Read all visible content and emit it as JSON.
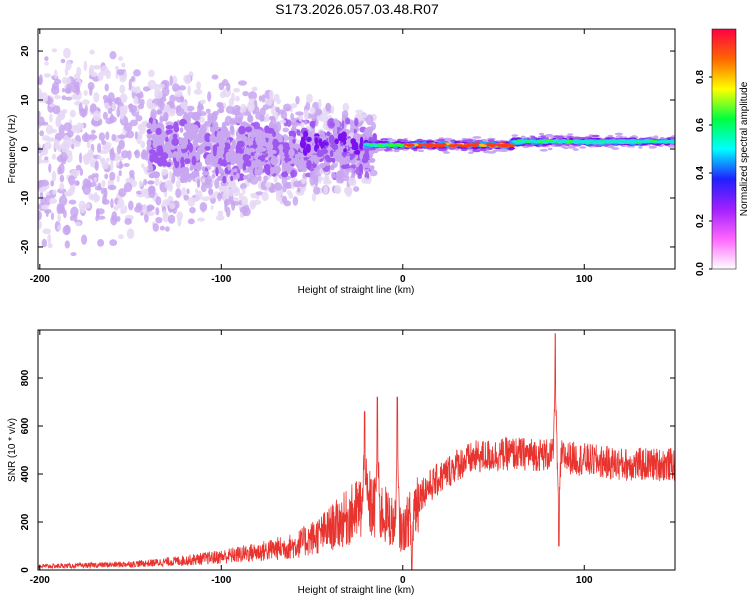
{
  "title": "S173.2026.057.03.48.R07",
  "colors": {
    "snr_line": "#e8332e",
    "scatter_palette": [
      "#e6d8f6",
      "#c8a6f0",
      "#9f55f0",
      "#7a10ef",
      "#2f1fe0",
      "#1aa8ff",
      "#18e6d8",
      "#22ff33",
      "#f6c40a",
      "#ff3a1a"
    ],
    "colorbar_gradient": [
      "#ffffff",
      "#ff66ff",
      "#a020ff",
      "#2020ff",
      "#00ffff",
      "#00ff40",
      "#ffff00",
      "#ff6600",
      "#ff0044"
    ]
  },
  "chart_data": [
    {
      "id": "spectrogram",
      "type": "heatmap",
      "xlabel": "Height of straight line (km)",
      "ylabel": "Frequency (Hz)",
      "xlim": [
        -201,
        150
      ],
      "ylim": [
        -24.5,
        24.5
      ],
      "xticks": [
        {
          "value": -200,
          "label": "-200"
        },
        {
          "value": -100,
          "label": "-100"
        },
        {
          "value": 0,
          "label": "0"
        },
        {
          "value": 100,
          "label": "100"
        }
      ],
      "yticks": [
        {
          "value": -20,
          "label": "-20"
        },
        {
          "value": -10,
          "label": "-10"
        },
        {
          "value": 0,
          "label": "0"
        },
        {
          "value": 10,
          "label": "10"
        },
        {
          "value": 20,
          "label": "20"
        }
      ],
      "regions": [
        {
          "x": [
            -201,
            -140
          ],
          "freq_center": 0,
          "freq_spread": 24,
          "amplitude": [
            0.0,
            0.15
          ],
          "description": "diffuse low-amplitude speckle"
        },
        {
          "x": [
            -140,
            -20
          ],
          "freq_center": 0,
          "freq_spread_start": 18,
          "freq_spread_end": 6,
          "amplitude": [
            0.05,
            0.25
          ]
        },
        {
          "x": [
            -20,
            150
          ],
          "freq_center": 0.8,
          "freq_spread": 1.5,
          "amplitude": [
            0.3,
            1.0
          ],
          "description": "narrow band near 0-2 Hz, strongest near 0-60 km"
        }
      ],
      "colorbar": {
        "label": "Normalized spectral amplitude",
        "range": [
          0,
          1
        ],
        "ticks": [
          {
            "value": 0.0,
            "label": "0.0"
          },
          {
            "value": 0.2,
            "label": "0.2"
          },
          {
            "value": 0.4,
            "label": "0.4"
          },
          {
            "value": 0.6,
            "label": "0.6"
          },
          {
            "value": 0.8,
            "label": "0.8"
          }
        ]
      }
    },
    {
      "id": "snr",
      "type": "line",
      "xlabel": "Height of straight line (km)",
      "ylabel": "SNR (10 * v/v)",
      "xlim": [
        -201,
        150
      ],
      "ylim": [
        0,
        1000
      ],
      "xticks": [
        {
          "value": -200,
          "label": "-200"
        },
        {
          "value": -100,
          "label": "-100"
        },
        {
          "value": 0,
          "label": "0"
        },
        {
          "value": 100,
          "label": "100"
        }
      ],
      "yticks": [
        {
          "value": 0,
          "label": "0"
        },
        {
          "value": 200,
          "label": "200"
        },
        {
          "value": 400,
          "label": "400"
        },
        {
          "value": 600,
          "label": "600"
        },
        {
          "value": 800,
          "label": "800"
        }
      ],
      "envelope": [
        {
          "x": -201,
          "y": 15
        },
        {
          "x": -180,
          "y": 18
        },
        {
          "x": -160,
          "y": 22
        },
        {
          "x": -140,
          "y": 28
        },
        {
          "x": -120,
          "y": 40
        },
        {
          "x": -100,
          "y": 55
        },
        {
          "x": -80,
          "y": 75
        },
        {
          "x": -60,
          "y": 100
        },
        {
          "x": -45,
          "y": 150
        },
        {
          "x": -30,
          "y": 220
        },
        {
          "x": -20,
          "y": 280
        },
        {
          "x": -10,
          "y": 230
        },
        {
          "x": 0,
          "y": 160
        },
        {
          "x": 10,
          "y": 320
        },
        {
          "x": 20,
          "y": 380
        },
        {
          "x": 30,
          "y": 440
        },
        {
          "x": 40,
          "y": 470
        },
        {
          "x": 60,
          "y": 485
        },
        {
          "x": 80,
          "y": 480
        },
        {
          "x": 100,
          "y": 460
        },
        {
          "x": 120,
          "y": 440
        },
        {
          "x": 150,
          "y": 440
        }
      ],
      "spikes": [
        {
          "x": -21,
          "y": 660
        },
        {
          "x": -14,
          "y": 720
        },
        {
          "x": -3,
          "y": 720
        },
        {
          "x": 5,
          "y": 0
        },
        {
          "x": 84,
          "y": 985
        },
        {
          "x": 86,
          "y": 100
        }
      ]
    }
  ]
}
